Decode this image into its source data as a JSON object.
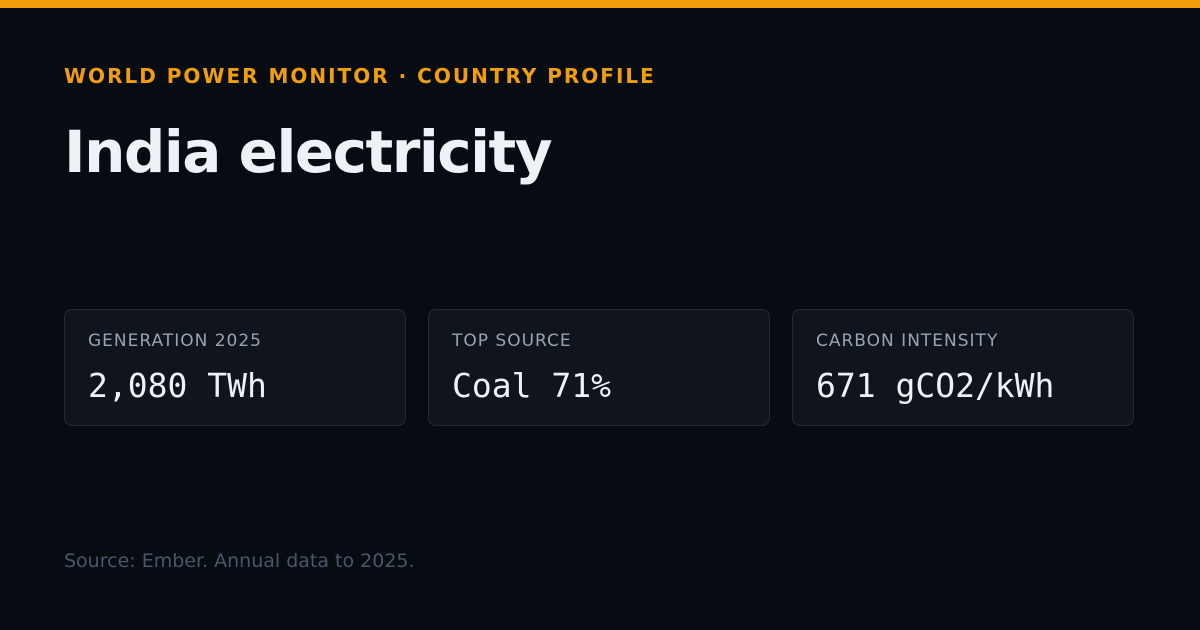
{
  "header": {
    "kicker": "WORLD POWER MONITOR · COUNTRY PROFILE",
    "title": "India electricity"
  },
  "stats": [
    {
      "label": "GENERATION 2025",
      "value": "2,080 TWh"
    },
    {
      "label": "TOP SOURCE",
      "value": "Coal 71%"
    },
    {
      "label": "CARBON INTENSITY",
      "value": "671 gCO2/kWh"
    }
  ],
  "footer": {
    "source": "Source: Ember. Annual data to 2025."
  }
}
